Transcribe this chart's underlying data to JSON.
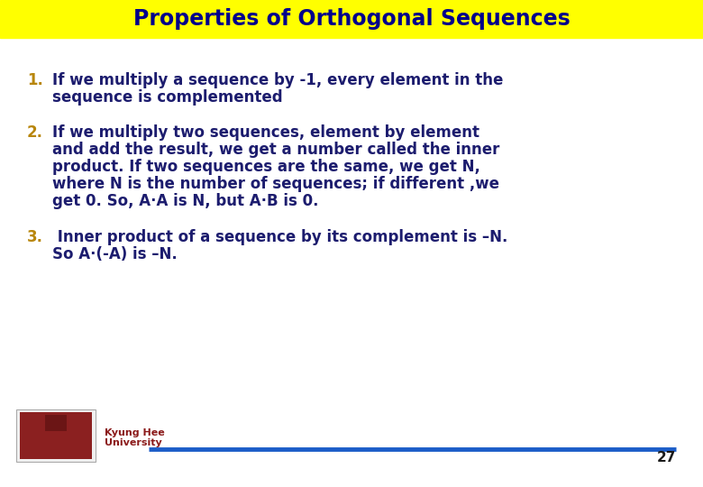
{
  "title": "Properties of Orthogonal Sequences",
  "title_bg_color": "#FFFF00",
  "title_text_color": "#00008B",
  "slide_bg_color": "#FFFFFF",
  "number_color": "#B8860B",
  "body_color": "#1C1C6E",
  "item1_line1": "If we multiply a sequence by -1, every element in the",
  "item1_line2": "sequence is complemented",
  "item2_line1": "If we multiply two sequences, element by element",
  "item2_line2": "and add the result, we get a number called the inner",
  "item2_line3": "product. If two sequences are the same, we get N,",
  "item2_line4": "where N is the number of sequences; if different ,we",
  "item2_line5": "get 0. So, A·A is N, but A·B is 0.",
  "item3_line1": " Inner product of a sequence by its complement is –N.",
  "item3_line2": "So A·(-A) is –N.",
  "footer_line1": "Kyung Hee",
  "footer_line2": "University",
  "page_number": "27",
  "line_color": "#1C5DC8",
  "footer_color": "#8B1A1A",
  "font_size_title": 17,
  "font_size_body": 12,
  "font_size_number": 12,
  "font_size_footer": 8,
  "font_size_page": 11
}
